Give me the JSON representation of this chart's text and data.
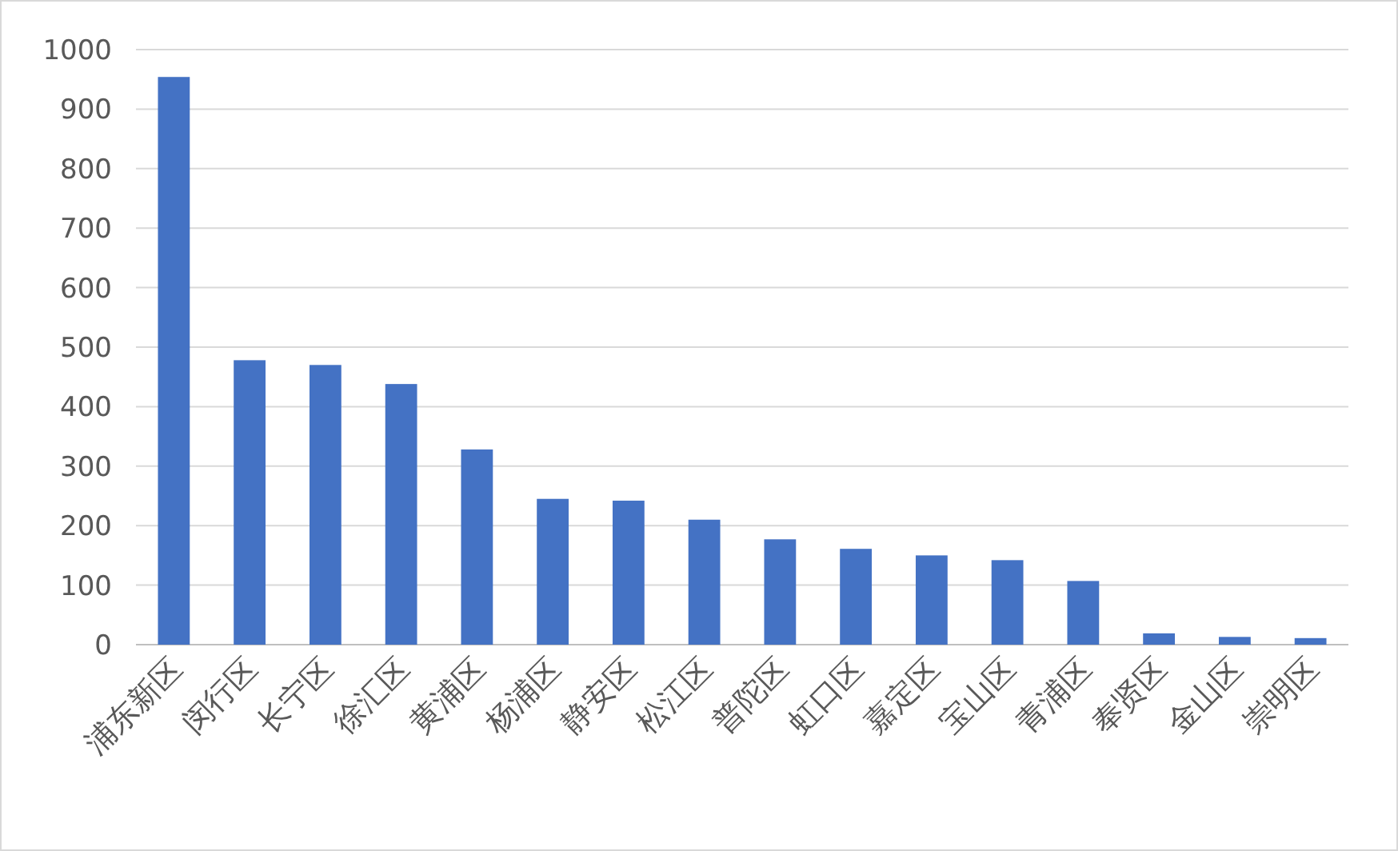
{
  "chart_data": {
    "type": "bar",
    "categories": [
      "浦东新区",
      "闵行区",
      "长宁区",
      "徐汇区",
      "黄浦区",
      "杨浦区",
      "静安区",
      "松江区",
      "普陀区",
      "虹口区",
      "嘉定区",
      "宝山区",
      "青浦区",
      "奉贤区",
      "金山区",
      "崇明区"
    ],
    "values": [
      954,
      478,
      470,
      438,
      328,
      245,
      242,
      210,
      177,
      161,
      150,
      142,
      107,
      19,
      13,
      11
    ],
    "color": "#4472c4",
    "ylim": [
      0,
      1000
    ],
    "yticks": [
      0,
      100,
      200,
      300,
      400,
      500,
      600,
      700,
      800,
      900,
      1000
    ],
    "grid": "y"
  }
}
